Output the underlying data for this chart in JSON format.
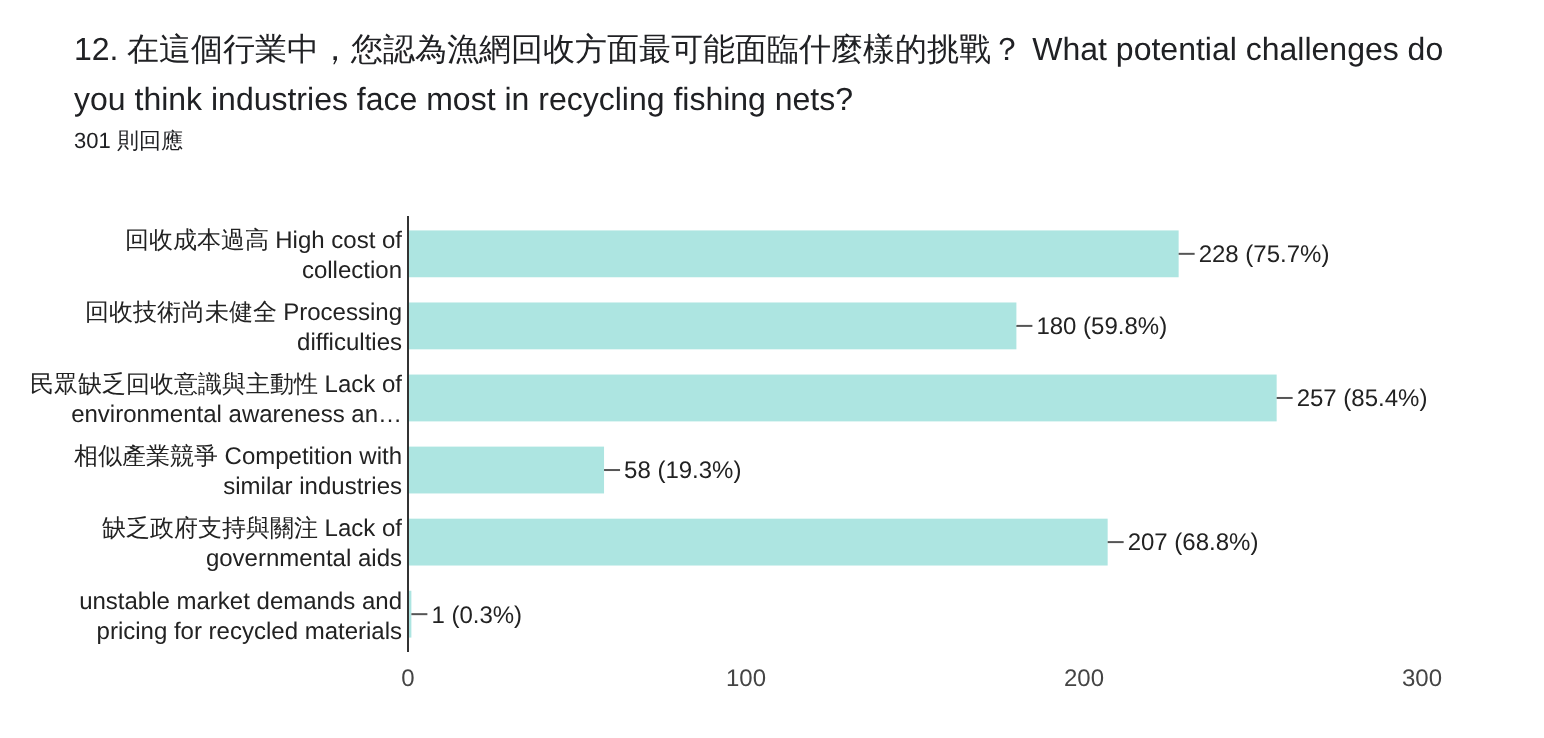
{
  "chart_data": {
    "type": "bar",
    "orientation": "horizontal",
    "title": "12. 在這個行業中，您認為漁網回收方面最可能面臨什麼樣的挑戰？ What potential challenges do you think industries face most in recycling fishing nets?",
    "subtitle": "301 則回應",
    "categories": [
      "回收成本過高 High cost of collection",
      "回收技術尚未健全 Processing difficulties",
      "民眾缺乏回收意識與主動性 Lack of environmental awareness an…",
      "相似產業競爭 Competition with similar industries",
      "缺乏政府支持與關注 Lack of governmental aids",
      "unstable market demands and pricing for recycled materials"
    ],
    "values": [
      228,
      180,
      257,
      58,
      207,
      1
    ],
    "value_labels": [
      "228 (75.7%)",
      "180 (59.8%)",
      "257 (85.4%)",
      "58 (19.3%)",
      "207 (68.8%)",
      "1 (0.3%)"
    ],
    "color": "#ade5e1",
    "xlim": [
      0,
      300
    ],
    "xticks": [
      0,
      100,
      200,
      300
    ],
    "grid": false
  }
}
